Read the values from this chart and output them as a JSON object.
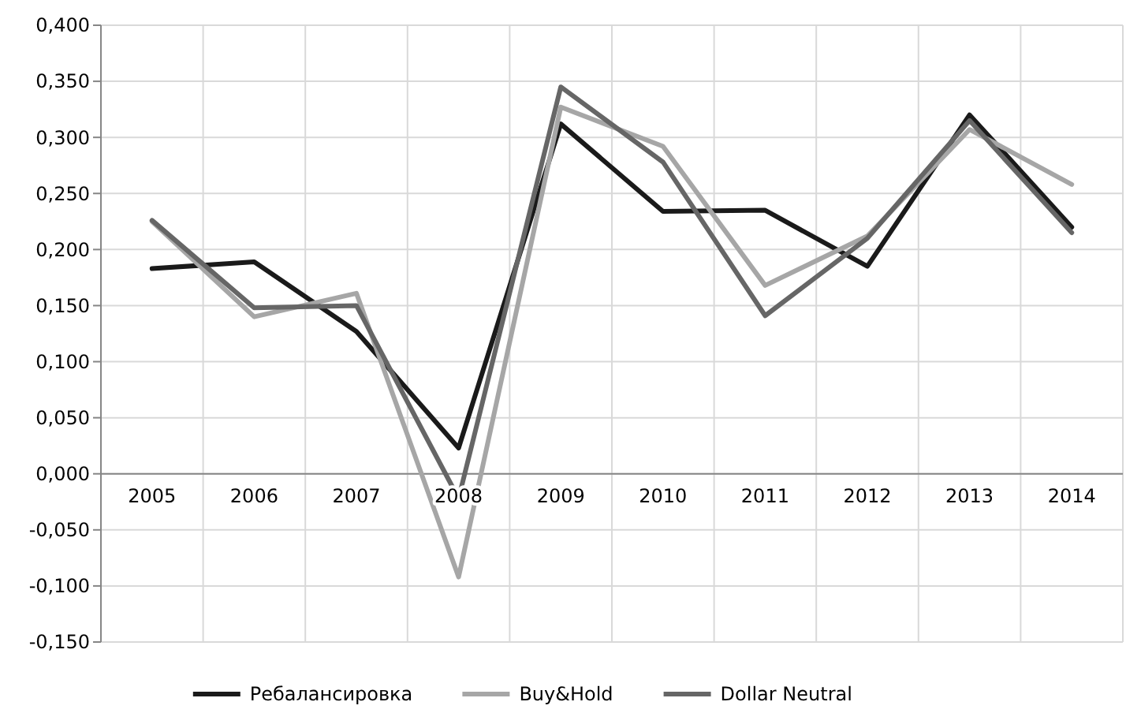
{
  "chart_data": {
    "type": "line",
    "categories": [
      "2005",
      "2006",
      "2007",
      "2008",
      "2009",
      "2010",
      "2011",
      "2012",
      "2013",
      "2014"
    ],
    "series": [
      {
        "name": "Ребалансировка",
        "color": "#1a1a1a",
        "values": [
          0.183,
          0.189,
          0.127,
          0.023,
          0.312,
          0.234,
          0.235,
          0.185,
          0.32,
          0.22
        ]
      },
      {
        "name": "Buy&Hold",
        "color": "#a6a6a6",
        "values": [
          0.225,
          0.14,
          0.161,
          -0.092,
          0.327,
          0.292,
          0.168,
          0.212,
          0.307,
          0.258
        ]
      },
      {
        "name": "Dollar Neutral",
        "color": "#666666",
        "values": [
          0.226,
          0.148,
          0.15,
          -0.022,
          0.345,
          0.278,
          0.141,
          0.21,
          0.315,
          0.215
        ]
      }
    ],
    "ylim": [
      -0.15,
      0.4
    ],
    "yticks": [
      {
        "value": -0.15,
        "label": "-0,150"
      },
      {
        "value": -0.1,
        "label": "-0,100"
      },
      {
        "value": -0.05,
        "label": "-0,050"
      },
      {
        "value": 0,
        "label": "0,000"
      },
      {
        "value": 0.05,
        "label": "0,050"
      },
      {
        "value": 0.1,
        "label": "0,100"
      },
      {
        "value": 0.15,
        "label": "0,150"
      },
      {
        "value": 0.2,
        "label": "0,200"
      },
      {
        "value": 0.25,
        "label": "0,250"
      },
      {
        "value": 0.3,
        "label": "0,300"
      },
      {
        "value": 0.35,
        "label": "0,350"
      },
      {
        "value": 0.4,
        "label": "0,400"
      }
    ],
    "grid": true,
    "legend": "bottom",
    "marker": "none",
    "line_style": "solid"
  }
}
